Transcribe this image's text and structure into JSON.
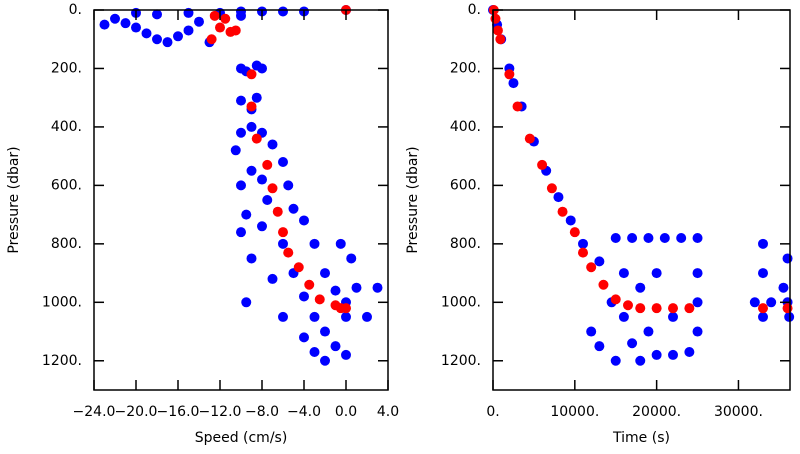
{
  "chart_data": [
    {
      "type": "scatter",
      "xlabel": "Speed (cm/s)",
      "ylabel": "Pressure (dbar)",
      "xlim": [
        -24,
        4
      ],
      "ylim": [
        1300,
        0
      ],
      "xticks": [
        {
          "value": -24,
          "label": "−24.0"
        },
        {
          "value": -20,
          "label": "−20.0"
        },
        {
          "value": -16,
          "label": "−16.0"
        },
        {
          "value": -12,
          "label": "−12.0"
        },
        {
          "value": -8,
          "label": "−8.0"
        },
        {
          "value": -4,
          "label": "−4.0"
        },
        {
          "value": 0,
          "label": "0.0"
        },
        {
          "value": 4,
          "label": "4.0"
        }
      ],
      "yticks": [
        {
          "value": 0,
          "label": "0."
        },
        {
          "value": 200,
          "label": "200."
        },
        {
          "value": 400,
          "label": "400."
        },
        {
          "value": 600,
          "label": "600."
        },
        {
          "value": 800,
          "label": "800."
        },
        {
          "value": 1000,
          "label": "1000."
        },
        {
          "value": 1200,
          "label": "1200."
        }
      ],
      "series": [
        {
          "color": "#0000ff",
          "x": [
            -23,
            -22,
            -21,
            -20,
            -19,
            -18,
            -17,
            -16,
            -15,
            -14,
            -13,
            -12,
            -10,
            -8,
            -6,
            -4,
            -10,
            -15,
            -18,
            -20,
            0,
            -10,
            -8.5,
            -9.5,
            -8,
            -10,
            -8.5,
            -9,
            -10,
            -9,
            -8,
            -10.5,
            -7,
            -9,
            -6,
            -10,
            -8,
            -5.5,
            -9.5,
            -7.5,
            -5,
            -10,
            -8,
            -4,
            -9,
            -6,
            -3,
            -9.5,
            -7,
            -5,
            -2,
            -4,
            -1,
            1,
            3,
            -6,
            -3,
            0,
            2,
            -4,
            -2,
            0,
            -1,
            0,
            -0.5,
            0.5,
            -2,
            -3
          ],
          "values": [
            50,
            30,
            45,
            60,
            80,
            100,
            110,
            90,
            70,
            40,
            110,
            10,
            5,
            5,
            5,
            5,
            20,
            10,
            15,
            10,
            0,
            200,
            190,
            210,
            200,
            310,
            300,
            340,
            420,
            400,
            420,
            480,
            460,
            550,
            520,
            600,
            580,
            600,
            700,
            650,
            680,
            760,
            740,
            720,
            850,
            800,
            800,
            1000,
            920,
            900,
            900,
            980,
            960,
            950,
            950,
            1050,
            1050,
            1050,
            1050,
            1120,
            1100,
            1000,
            1150,
            1180,
            800,
            850,
            1200,
            1170
          ]
        },
        {
          "color": "#ff0000",
          "x": [
            -12.5,
            -11.5,
            -12,
            -11,
            -12.8,
            -10.5,
            0,
            -9,
            -9,
            -8.5,
            -7.5,
            -7,
            -6.5,
            -6,
            -5.5,
            -4.5,
            -3.5,
            -2.5,
            -1,
            -0.5,
            0
          ],
          "values": [
            20,
            30,
            60,
            75,
            100,
            70,
            0,
            220,
            330,
            440,
            530,
            610,
            690,
            760,
            830,
            880,
            940,
            990,
            1010,
            1020,
            1020
          ]
        }
      ]
    },
    {
      "type": "scatter",
      "xlabel": "Time (s)",
      "ylabel": "Pressure (dbar)",
      "xlim": [
        0,
        36300
      ],
      "ylim": [
        1300,
        0
      ],
      "xticks": [
        {
          "value": 0,
          "label": "0."
        },
        {
          "value": 10000,
          "label": "10000."
        },
        {
          "value": 20000,
          "label": "20000."
        },
        {
          "value": 30000,
          "label": "30000."
        }
      ],
      "yticks": [
        {
          "value": 0,
          "label": "0."
        },
        {
          "value": 200,
          "label": "200."
        },
        {
          "value": 400,
          "label": "400."
        },
        {
          "value": 600,
          "label": "600."
        },
        {
          "value": 800,
          "label": "800."
        },
        {
          "value": 1000,
          "label": "1000."
        },
        {
          "value": 1200,
          "label": "1200."
        }
      ],
      "series": [
        {
          "color": "#0000ff",
          "x": [
            0,
            500,
            1000,
            2000,
            2500,
            3500,
            5000,
            6500,
            8000,
            9500,
            11000,
            13000,
            14500,
            16000,
            12000,
            13000,
            15000,
            18000,
            20000,
            22000,
            24000,
            15000,
            17000,
            19000,
            21000,
            23000,
            25000,
            25000,
            25000,
            25000,
            20000,
            18000,
            22000,
            16000,
            33000,
            33000,
            33000,
            32000,
            34000,
            36000,
            36000,
            36200,
            35500,
            17000,
            19000
          ],
          "values": [
            0,
            50,
            100,
            200,
            250,
            330,
            450,
            550,
            640,
            720,
            800,
            860,
            1000,
            1050,
            1100,
            1150,
            1200,
            1200,
            1180,
            1180,
            1170,
            780,
            780,
            780,
            780,
            780,
            780,
            900,
            1000,
            1100,
            900,
            950,
            1050,
            900,
            800,
            900,
            1050,
            1000,
            1000,
            850,
            1000,
            1050,
            950,
            1140,
            1100
          ]
        },
        {
          "color": "#ff0000",
          "x": [
            100,
            300,
            600,
            900,
            2000,
            3000,
            4500,
            6000,
            7200,
            8500,
            10000,
            11000,
            12000,
            13500,
            15000,
            16500,
            18000,
            20000,
            22000,
            24000,
            33000,
            36000
          ],
          "values": [
            0,
            30,
            70,
            100,
            220,
            330,
            440,
            530,
            610,
            690,
            760,
            830,
            880,
            940,
            990,
            1010,
            1020,
            1020,
            1020,
            1020,
            1020,
            1020
          ]
        }
      ]
    }
  ]
}
